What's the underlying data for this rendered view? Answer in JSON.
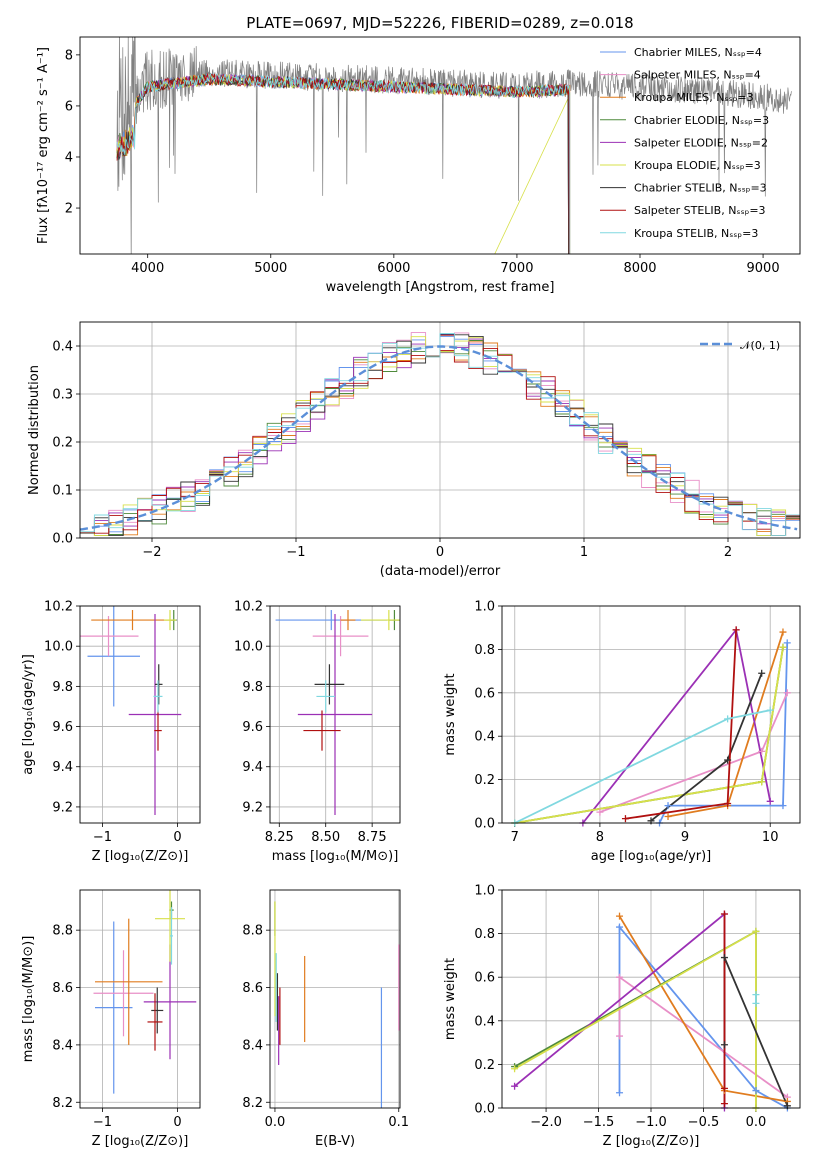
{
  "figure": {
    "title": "PLATE=0697, MJD=52226, FIBERID=0289, z=0.018"
  },
  "chart_data": [
    {
      "id": "spectrum",
      "type": "line",
      "xlabel": "wavelength [Angstrom, rest frame]",
      "ylabel": "Flux [fλ10⁻¹⁷ erg cm⁻² s⁻¹ A⁻¹]",
      "xlim": [
        3450,
        9300
      ],
      "ylim": [
        0.2,
        8.7
      ],
      "xticks": [
        4000,
        5000,
        6000,
        7000,
        8000,
        9000
      ],
      "yticks": [
        2,
        4,
        6,
        8
      ],
      "legend_position": "top-right",
      "legend": [
        {
          "label": "Chabrier MILES, Nₛₛₚ=4",
          "color": "#6495ed"
        },
        {
          "label": "Salpeter MILES, Nₛₛₚ=4",
          "color": "#e88fc7"
        },
        {
          "label": "Kroupa MILES, Nₛₛₚ=3",
          "color": "#e07c1f"
        },
        {
          "label": "Chabrier ELODIE, Nₛₛₚ=3",
          "color": "#4f8a3c"
        },
        {
          "label": "Salpeter ELODIE, Nₛₛₚ=2",
          "color": "#9b30b5"
        },
        {
          "label": "Kroupa ELODIE, Nₛₛₚ=3",
          "color": "#d7e04a"
        },
        {
          "label": "Chabrier STELIB, Nₛₛₚ=3",
          "color": "#333333"
        },
        {
          "label": "Salpeter STELIB, Nₛₛₚ=3",
          "color": "#b01010"
        },
        {
          "label": "Kroupa STELIB, Nₛₛₚ=3",
          "color": "#80d8e0"
        }
      ],
      "data_color": "#808080",
      "data_range": [
        3750,
        9230
      ],
      "model_range": [
        3750,
        7420
      ],
      "continuum": [
        [
          3750,
          5.8
        ],
        [
          3900,
          6.3
        ],
        [
          4000,
          7.0
        ],
        [
          4500,
          7.3
        ],
        [
          5000,
          7.2
        ],
        [
          5500,
          7.1
        ],
        [
          6000,
          7.0
        ],
        [
          6500,
          6.9
        ],
        [
          7000,
          6.8
        ],
        [
          7500,
          6.9
        ],
        [
          8000,
          6.75
        ],
        [
          8500,
          6.6
        ],
        [
          9000,
          6.35
        ],
        [
          9230,
          6.2
        ]
      ]
    },
    {
      "id": "residuals",
      "type": "histogram",
      "xlabel": "(data-model)/error",
      "ylabel": "Normed distribution",
      "xlim": [
        -2.5,
        2.5
      ],
      "ylim": [
        0,
        0.45
      ],
      "xticks": [
        -2,
        -1,
        0,
        1,
        2
      ],
      "yticks": [
        0.0,
        0.1,
        0.2,
        0.3,
        0.4
      ],
      "grid": true,
      "bin_width": 0.1,
      "reference": {
        "label": "𝒩(0, 1)",
        "color": "#5b8fd8",
        "style": "dashed",
        "mu": 0,
        "sigma": 1
      },
      "colors": [
        "#6495ed",
        "#e88fc7",
        "#e07c1f",
        "#4f8a3c",
        "#9b30b5",
        "#d7e04a",
        "#333333",
        "#b01010",
        "#80d8e0"
      ]
    },
    {
      "id": "age-vs-Z",
      "type": "errorbar",
      "xlabel": "Z [log₁₀(Z/Z⊙)]",
      "ylabel": "age  [log₁₀(age/yr)]",
      "xlim": [
        -1.3,
        0.3
      ],
      "ylim": [
        9.12,
        10.2
      ],
      "xticks": [
        -1,
        0
      ],
      "yticks": [
        9.2,
        9.4,
        9.6,
        9.8,
        10.0,
        10.2
      ],
      "grid": true,
      "points": [
        {
          "color": "#6495ed",
          "x": -0.85,
          "xerr": 0.35,
          "y": 9.95,
          "yerr": 0.25
        },
        {
          "color": "#e88fc7",
          "x": -0.92,
          "xerr": 0.4,
          "y": 10.05,
          "yerr": 0.1
        },
        {
          "color": "#e07c1f",
          "x": -0.6,
          "xerr": 0.55,
          "y": 10.13,
          "yerr": 0.05
        },
        {
          "color": "#4f8a3c",
          "x": -0.05,
          "xerr": 0.04,
          "y": 10.13,
          "yerr": 0.05
        },
        {
          "color": "#9b30b5",
          "x": -0.3,
          "xerr": 0.35,
          "y": 9.66,
          "yerr": 0.5
        },
        {
          "color": "#d7e04a",
          "x": -0.1,
          "xerr": 0.08,
          "y": 10.13,
          "yerr": 0.05
        },
        {
          "color": "#333333",
          "x": -0.25,
          "xerr": 0.05,
          "y": 9.81,
          "yerr": 0.1
        },
        {
          "color": "#b01010",
          "x": -0.26,
          "xerr": 0.05,
          "y": 9.58,
          "yerr": 0.1
        },
        {
          "color": "#80d8e0",
          "x": -0.26,
          "xerr": 0.06,
          "y": 9.75,
          "yerr": 0.08
        }
      ]
    },
    {
      "id": "age-vs-mass",
      "type": "errorbar",
      "xlabel": "mass [log₁₀(M/M⊙)]",
      "ylabel": "",
      "xlim": [
        8.2,
        8.9
      ],
      "ylim": [
        9.12,
        10.2
      ],
      "xticks": [
        8.25,
        8.5,
        8.75
      ],
      "yticks": [
        9.2,
        9.4,
        9.6,
        9.8,
        10.0,
        10.2
      ],
      "grid": true,
      "points": [
        {
          "color": "#6495ed",
          "x": 8.53,
          "xerr": 0.3,
          "y": 10.13,
          "yerr": 0.05
        },
        {
          "color": "#e88fc7",
          "x": 8.58,
          "xerr": 0.15,
          "y": 10.05,
          "yerr": 0.1
        },
        {
          "color": "#e07c1f",
          "x": 8.62,
          "xerr": 0.04,
          "y": 10.13,
          "yerr": 0.05
        },
        {
          "color": "#4f8a3c",
          "x": 8.87,
          "xerr": 0.03,
          "y": 10.13,
          "yerr": 0.05
        },
        {
          "color": "#9b30b5",
          "x": 8.55,
          "xerr": 0.2,
          "y": 9.66,
          "yerr": 0.5
        },
        {
          "color": "#d7e04a",
          "x": 8.84,
          "xerr": 0.15,
          "y": 10.13,
          "yerr": 0.05
        },
        {
          "color": "#333333",
          "x": 8.52,
          "xerr": 0.08,
          "y": 9.81,
          "yerr": 0.1
        },
        {
          "color": "#b01010",
          "x": 8.48,
          "xerr": 0.1,
          "y": 9.58,
          "yerr": 0.1
        },
        {
          "color": "#80d8e0",
          "x": 8.5,
          "xerr": 0.05,
          "y": 9.75,
          "yerr": 0.08
        }
      ]
    },
    {
      "id": "weight-vs-age",
      "type": "line",
      "xlabel": "age  [log₁₀(age/yr)]",
      "ylabel": "mass weight",
      "xlim": [
        6.85,
        10.35
      ],
      "ylim": [
        0,
        1
      ],
      "xticks": [
        7,
        8,
        9,
        10
      ],
      "yticks": [
        0.0,
        0.2,
        0.4,
        0.6,
        0.8,
        1.0
      ],
      "grid": true,
      "series": [
        {
          "color": "#6495ed",
          "x": [
            8.7,
            8.8,
            10.15,
            10.2
          ],
          "y": [
            0.0,
            0.08,
            0.08,
            0.83
          ]
        },
        {
          "color": "#e88fc7",
          "x": [
            8.0,
            9.9,
            10.2
          ],
          "y": [
            0.05,
            0.33,
            0.6
          ]
        },
        {
          "color": "#e07c1f",
          "x": [
            8.8,
            9.5,
            10.15
          ],
          "y": [
            0.03,
            0.08,
            0.88
          ]
        },
        {
          "color": "#4f8a3c",
          "x": [
            7.0,
            9.9,
            10.15
          ],
          "y": [
            0.0,
            0.19,
            0.81
          ]
        },
        {
          "color": "#9b30b5",
          "x": [
            7.8,
            9.6,
            10.0
          ],
          "y": [
            0.0,
            0.89,
            0.1
          ]
        },
        {
          "color": "#d7e04a",
          "x": [
            7.0,
            9.9,
            10.15
          ],
          "y": [
            0.0,
            0.19,
            0.81
          ]
        },
        {
          "color": "#333333",
          "x": [
            8.6,
            9.5,
            9.9
          ],
          "y": [
            0.01,
            0.29,
            0.69
          ]
        },
        {
          "color": "#b01010",
          "x": [
            8.3,
            9.5,
            9.6
          ],
          "y": [
            0.02,
            0.09,
            0.89
          ]
        },
        {
          "color": "#80d8e0",
          "x": [
            7.0,
            9.5,
            10.0
          ],
          "y": [
            0.0,
            0.48,
            0.52
          ]
        }
      ]
    },
    {
      "id": "mass-vs-Z",
      "type": "errorbar",
      "xlabel": "Z [log₁₀(Z/Z⊙)]",
      "ylabel": "mass [log₁₀(M/M⊙)]",
      "xlim": [
        -1.3,
        0.3
      ],
      "ylim": [
        8.18,
        8.94
      ],
      "xticks": [
        -1,
        0
      ],
      "yticks": [
        8.2,
        8.4,
        8.6,
        8.8
      ],
      "grid": true,
      "points": [
        {
          "color": "#6495ed",
          "x": -0.85,
          "xerr": 0.25,
          "y": 8.53,
          "yerr": 0.3
        },
        {
          "color": "#e88fc7",
          "x": -0.72,
          "xerr": 0.4,
          "y": 8.58,
          "yerr": 0.15
        },
        {
          "color": "#e07c1f",
          "x": -0.65,
          "xerr": 0.45,
          "y": 8.62,
          "yerr": 0.22
        },
        {
          "color": "#4f8a3c",
          "x": -0.08,
          "xerr": 0.03,
          "y": 8.87,
          "yerr": 0.03
        },
        {
          "color": "#9b30b5",
          "x": -0.1,
          "xerr": 0.35,
          "y": 8.55,
          "yerr": 0.2
        },
        {
          "color": "#d7e04a",
          "x": -0.1,
          "xerr": 0.2,
          "y": 8.84,
          "yerr": 0.15
        },
        {
          "color": "#333333",
          "x": -0.27,
          "xerr": 0.08,
          "y": 8.52,
          "yerr": 0.08
        },
        {
          "color": "#b01010",
          "x": -0.3,
          "xerr": 0.1,
          "y": 8.48,
          "yerr": 0.1
        },
        {
          "color": "#80d8e0",
          "x": -0.08,
          "xerr": 0.02,
          "y": 8.78,
          "yerr": 0.1
        }
      ]
    },
    {
      "id": "mass-vs-ebv",
      "type": "errorbar",
      "xlabel": "E(B-V)",
      "ylabel": "",
      "xlim": [
        -0.004,
        0.101
      ],
      "ylim": [
        8.18,
        8.94
      ],
      "xticks": [
        0.0,
        0.1
      ],
      "yticks": [
        8.2,
        8.4,
        8.6,
        8.8
      ],
      "grid": true,
      "points": [
        {
          "color": "#6495ed",
          "x": 0.086,
          "y": 8.38,
          "yerr": 0.22
        },
        {
          "color": "#e88fc7",
          "x": 0.1,
          "y": 8.6,
          "yerr": 0.15
        },
        {
          "color": "#e07c1f",
          "x": 0.024,
          "y": 8.56,
          "yerr": 0.15
        },
        {
          "color": "#4f8a3c",
          "x": 0.0,
          "y": 8.84,
          "yerr": 0.06
        },
        {
          "color": "#9b30b5",
          "x": 0.003,
          "y": 8.45,
          "yerr": 0.12
        },
        {
          "color": "#d7e04a",
          "x": 0.0,
          "y": 8.7,
          "yerr": 0.2
        },
        {
          "color": "#333333",
          "x": 0.002,
          "y": 8.55,
          "yerr": 0.1
        },
        {
          "color": "#b01010",
          "x": 0.004,
          "y": 8.5,
          "yerr": 0.1
        },
        {
          "color": "#80d8e0",
          "x": 0.001,
          "y": 8.6,
          "yerr": 0.12
        }
      ]
    },
    {
      "id": "weight-vs-Z",
      "type": "line",
      "xlabel": "Z [log₁₀(Z/Z⊙)]",
      "ylabel": "mass weight",
      "xlim": [
        -2.42,
        0.42
      ],
      "ylim": [
        0,
        1
      ],
      "xticks": [
        -2.0,
        -1.5,
        -1.0,
        -0.5,
        0.0
      ],
      "yticks": [
        0.0,
        0.2,
        0.4,
        0.6,
        0.8,
        1.0
      ],
      "grid": true,
      "series": [
        {
          "color": "#6495ed",
          "x": [
            -1.3,
            -1.3,
            0.0,
            0.3
          ],
          "y": [
            0.07,
            0.83,
            0.08,
            0.0
          ]
        },
        {
          "color": "#e88fc7",
          "x": [
            -1.3,
            -1.3,
            0.3
          ],
          "y": [
            0.33,
            0.6,
            0.05
          ]
        },
        {
          "color": "#e07c1f",
          "x": [
            -1.3,
            -0.3,
            0.3
          ],
          "y": [
            0.88,
            0.08,
            0.03
          ]
        },
        {
          "color": "#4f8a3c",
          "x": [
            -2.3,
            0.0,
            0.0
          ],
          "y": [
            0.19,
            0.81,
            0.0
          ]
        },
        {
          "color": "#9b30b5",
          "x": [
            -2.3,
            -0.3,
            -0.3
          ],
          "y": [
            0.1,
            0.89,
            0.0
          ]
        },
        {
          "color": "#d7e04a",
          "x": [
            -2.3,
            0.0,
            0.0
          ],
          "y": [
            0.18,
            0.81,
            0.0
          ]
        },
        {
          "color": "#333333",
          "x": [
            -0.3,
            -0.3,
            0.3
          ],
          "y": [
            0.29,
            0.69,
            0.01
          ]
        },
        {
          "color": "#b01010",
          "x": [
            -0.3,
            -0.3,
            -0.3
          ],
          "y": [
            0.02,
            0.09,
            0.89
          ]
        },
        {
          "color": "#80d8e0",
          "x": [
            0.0,
            0.0
          ],
          "y": [
            0.48,
            0.52
          ]
        }
      ]
    }
  ]
}
